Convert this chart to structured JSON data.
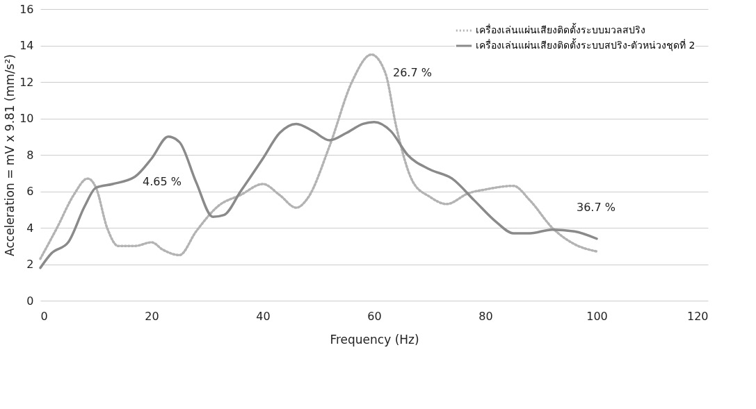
{
  "chart_data": {
    "type": "line",
    "xlabel": "Frequency (Hz)",
    "ylabel": "Acceleration = mV x 9.81 (mm/s²)",
    "xlim": [
      0,
      120
    ],
    "xticks": [
      0,
      20,
      40,
      60,
      80,
      100,
      120
    ],
    "ylim": [
      0,
      16
    ],
    "yticks": [
      0,
      2,
      4,
      6,
      8,
      10,
      12,
      14,
      16
    ],
    "grid": "y",
    "legend": "top right",
    "marker": "none",
    "series": [
      {
        "name": "เครื่องเล่นแผ่นเสียงติดตั้งระบบมวลสปริง",
        "color": "#b3b3b3",
        "line_style": "dotted",
        "x": [
          0,
          3,
          6,
          8.5,
          10,
          12,
          14,
          17,
          20,
          22,
          25,
          28,
          32,
          36,
          40,
          43,
          46,
          48,
          52,
          56,
          59.5,
          62,
          64,
          67,
          70,
          73,
          77,
          80,
          85,
          88,
          92,
          96,
          100
        ],
        "values": [
          2.3,
          4.0,
          5.8,
          6.7,
          6.2,
          4.0,
          3.0,
          3.0,
          3.2,
          2.8,
          2.5,
          3.8,
          5.2,
          5.8,
          6.4,
          5.8,
          5.1,
          5.6,
          8.5,
          12.0,
          13.5,
          12.5,
          9.5,
          6.5,
          5.7,
          5.3,
          5.9,
          6.1,
          6.3,
          5.5,
          4.0,
          3.1,
          2.7
        ]
      },
      {
        "name": "เครื่องเล่นแผ่นเสียงติดตั้งระบบสปริง-ตัวหน่วงชุดที่ 2",
        "color": "#8a8a8a",
        "line_style": "solid",
        "x": [
          0,
          2,
          5,
          8,
          10,
          13,
          17,
          20,
          23,
          25,
          28,
          31,
          33,
          36,
          40,
          43,
          46,
          49,
          52,
          55,
          58,
          60,
          63,
          66,
          70,
          74,
          78,
          82,
          85,
          88,
          92,
          96,
          100
        ],
        "values": [
          1.8,
          2.6,
          3.2,
          5.2,
          6.2,
          6.4,
          6.8,
          7.8,
          9.0,
          8.7,
          6.5,
          4.6,
          4.7,
          6.0,
          7.8,
          9.2,
          9.7,
          9.3,
          8.8,
          9.2,
          9.7,
          9.8,
          9.3,
          8.0,
          7.2,
          6.7,
          5.5,
          4.3,
          3.7,
          3.7,
          3.9,
          3.8,
          3.4
        ]
      }
    ],
    "annotations": [
      "4.65 %",
      "26.7 %",
      "36.7 %"
    ]
  }
}
